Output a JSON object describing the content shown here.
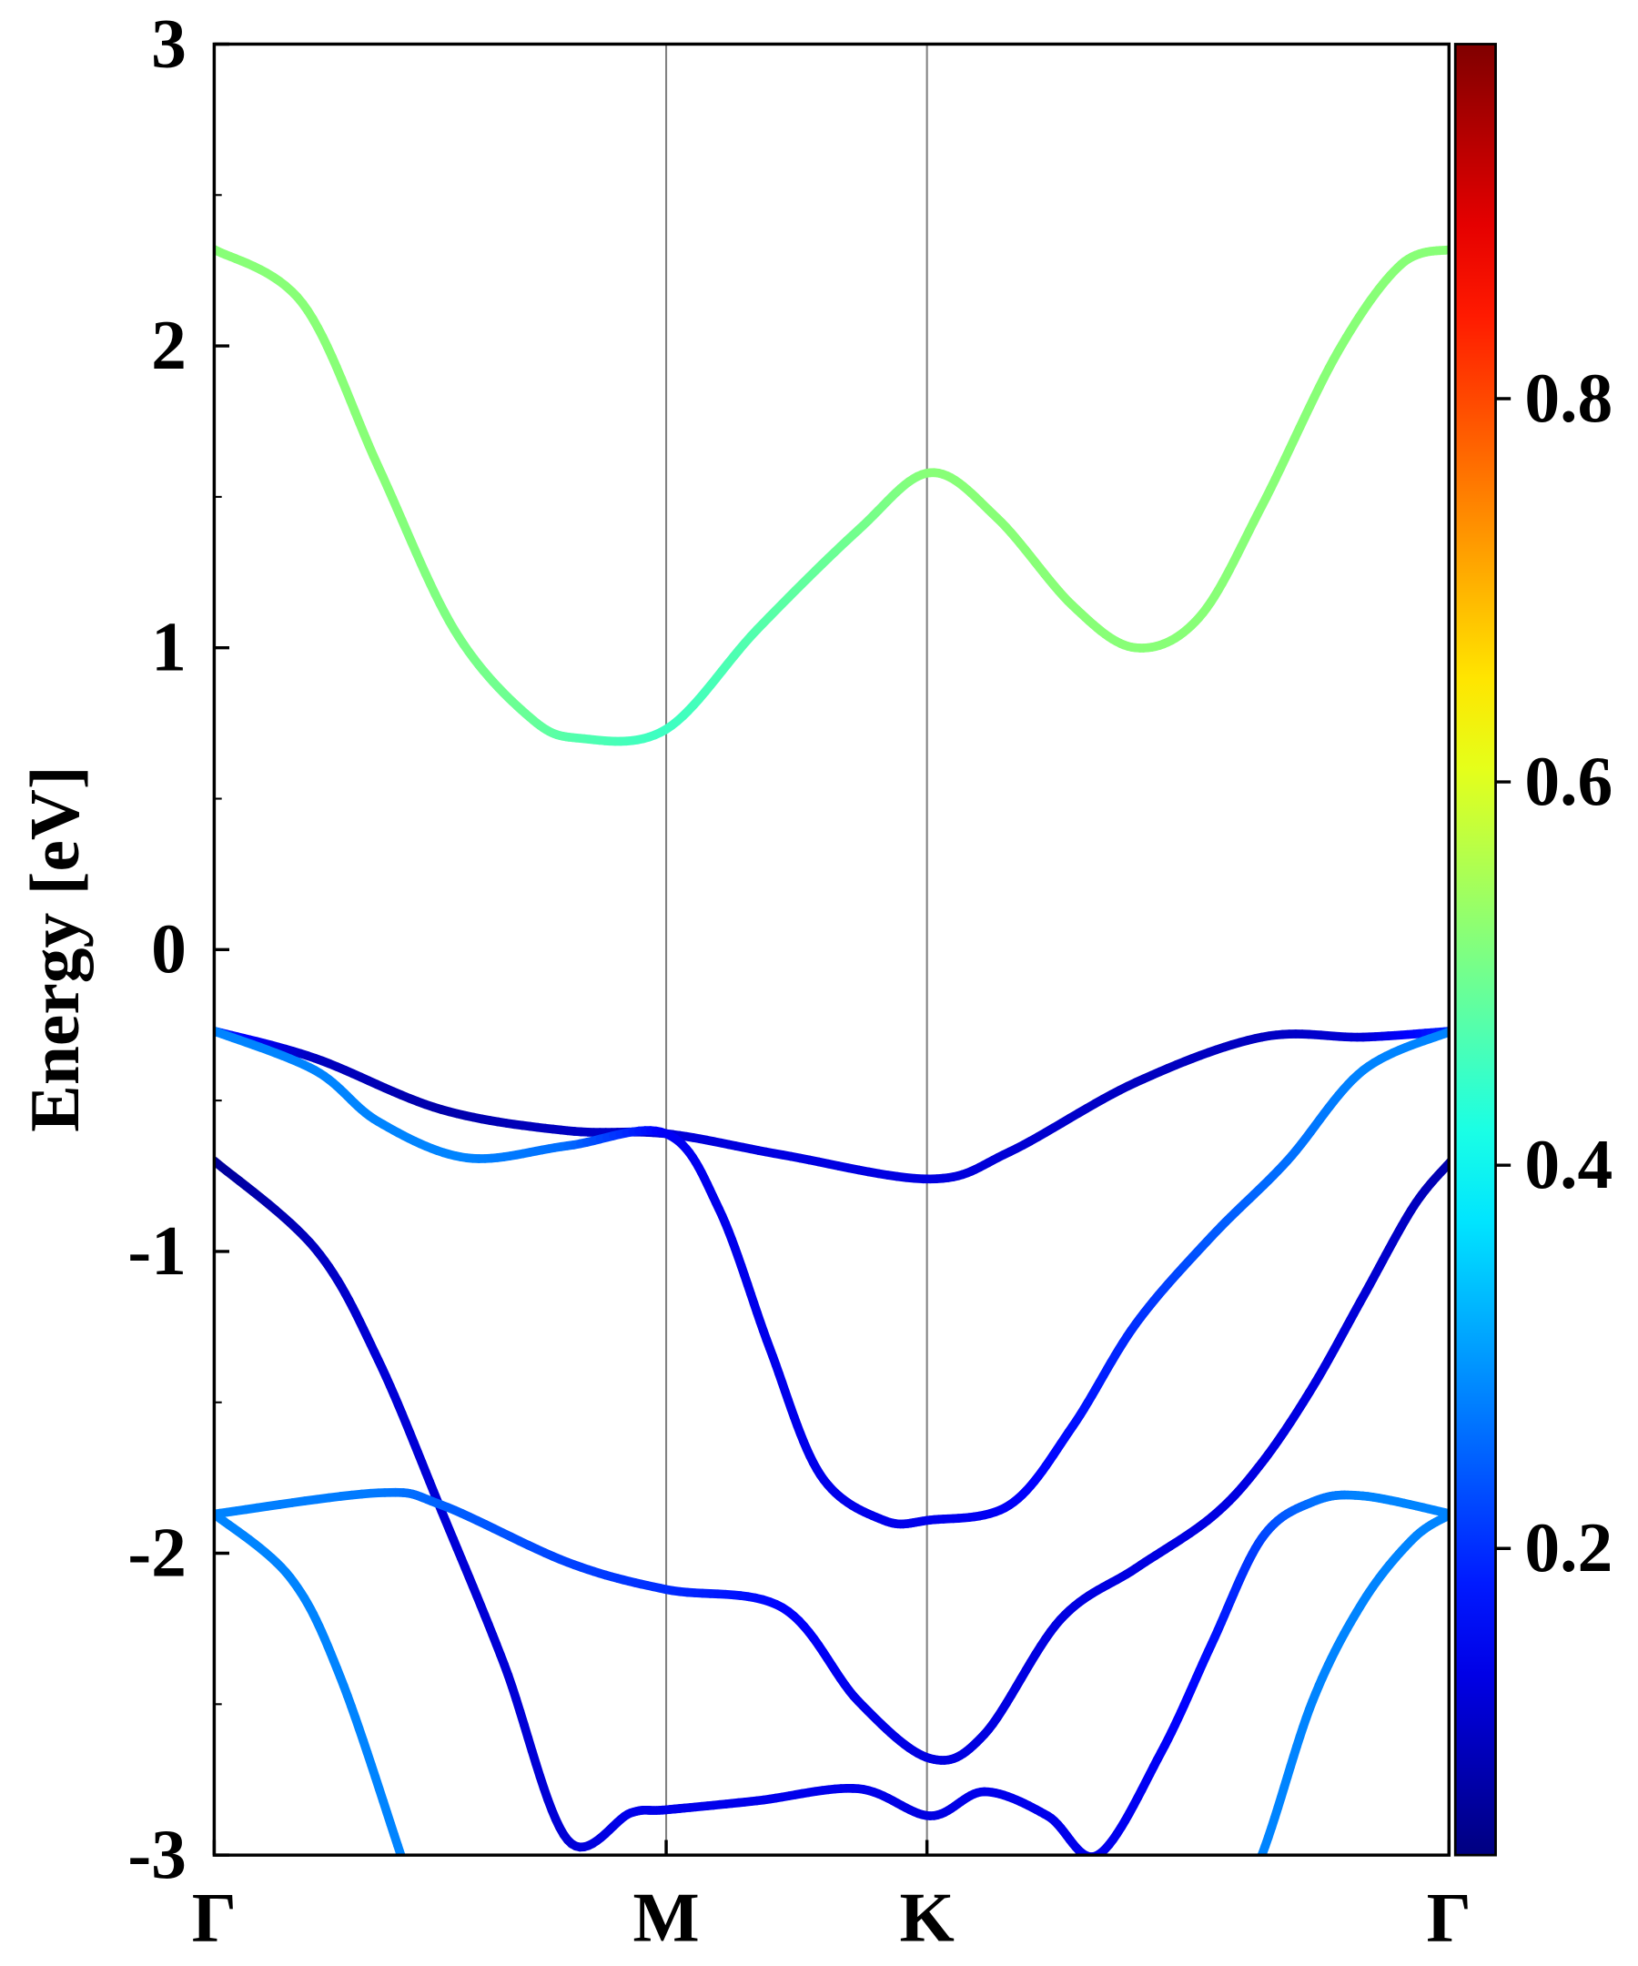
{
  "chart_data": {
    "type": "line",
    "title": "",
    "xlabel": "",
    "ylabel": "Energy [eV]",
    "ylim": [
      -3,
      3
    ],
    "yticks": [
      "3",
      "2",
      "1",
      "0",
      "-1",
      "-2",
      "-3"
    ],
    "ytick_values": [
      3,
      2,
      1,
      0,
      -1,
      -2,
      -3
    ],
    "y_minor_step": 0.5,
    "xlim": [
      0,
      2.732
    ],
    "high_symmetry_points": [
      {
        "label": "Γ",
        "k": 0
      },
      {
        "label": "M",
        "k": 1.0
      },
      {
        "label": "K",
        "k": 1.577
      },
      {
        "label": "Γ",
        "k": 2.732
      }
    ],
    "vertical_lines_at": [
      1.0,
      1.577
    ],
    "vertical_line_color": "#808080",
    "colormap": "jet",
    "colorbar": {
      "range": [
        0.04,
        0.985
      ],
      "ticks": [
        "0.2",
        "0.4",
        "0.6",
        "0.8"
      ],
      "tick_values": [
        0.2,
        0.4,
        0.6,
        0.8
      ]
    },
    "bands_note_units": "each point is [k, energy_eV, weight]",
    "bands": [
      {
        "points": [
          [
            0,
            2.32,
            0.52
          ],
          [
            0.196,
            2.14,
            0.52
          ],
          [
            0.363,
            1.6,
            0.52
          ],
          [
            0.531,
            1.06,
            0.51
          ],
          [
            0.698,
            0.77,
            0.49
          ],
          [
            0.81,
            0.7,
            0.47
          ],
          [
            1.0,
            0.73,
            0.45
          ],
          [
            1.201,
            1.06,
            0.47
          ],
          [
            1.425,
            1.39,
            0.5
          ],
          [
            1.584,
            1.58,
            0.52
          ],
          [
            1.732,
            1.43,
            0.52
          ],
          [
            1.899,
            1.14,
            0.52
          ],
          [
            2.039,
            1.0,
            0.52
          ],
          [
            2.179,
            1.1,
            0.52
          ],
          [
            2.318,
            1.47,
            0.52
          ],
          [
            2.486,
            1.98,
            0.52
          ],
          [
            2.626,
            2.27,
            0.52
          ],
          [
            2.737,
            2.32,
            0.52
          ]
        ]
      },
      {
        "points": [
          [
            0,
            -0.27,
            0.2
          ],
          [
            0.223,
            -0.36,
            0.1
          ],
          [
            0.503,
            -0.53,
            0.08
          ],
          [
            0.782,
            -0.6,
            0.1
          ],
          [
            1.0,
            -0.61,
            0.12
          ],
          [
            1.257,
            -0.68,
            0.13
          ],
          [
            1.584,
            -0.76,
            0.13
          ],
          [
            1.76,
            -0.67,
            0.12
          ],
          [
            2.039,
            -0.44,
            0.1
          ],
          [
            2.318,
            -0.29,
            0.1
          ],
          [
            2.542,
            -0.29,
            0.12
          ],
          [
            2.737,
            -0.27,
            0.2
          ]
        ]
      },
      {
        "points": [
          [
            0,
            -0.27,
            0.28
          ],
          [
            0.223,
            -0.4,
            0.28
          ],
          [
            0.363,
            -0.57,
            0.28
          ],
          [
            0.559,
            -0.69,
            0.28
          ],
          [
            0.782,
            -0.65,
            0.26
          ],
          [
            1.0,
            -0.61,
            0.15
          ],
          [
            1.117,
            -0.86,
            0.14
          ],
          [
            1.229,
            -1.32,
            0.14
          ],
          [
            1.341,
            -1.74,
            0.14
          ],
          [
            1.48,
            -1.89,
            0.14
          ],
          [
            1.584,
            -1.89,
            0.14
          ],
          [
            1.76,
            -1.84,
            0.15
          ],
          [
            1.899,
            -1.58,
            0.17
          ],
          [
            2.039,
            -1.24,
            0.2
          ],
          [
            2.207,
            -0.95,
            0.24
          ],
          [
            2.374,
            -0.7,
            0.26
          ],
          [
            2.542,
            -0.4,
            0.28
          ],
          [
            2.737,
            -0.27,
            0.28
          ]
        ]
      },
      {
        "points": [
          [
            0,
            -0.7,
            0.06
          ],
          [
            0.223,
            -0.99,
            0.1
          ],
          [
            0.363,
            -1.36,
            0.12
          ],
          [
            0.503,
            -1.86,
            0.12
          ],
          [
            0.642,
            -2.37,
            0.12
          ],
          [
            0.782,
            -2.95,
            0.12
          ],
          [
            0.922,
            -2.86,
            0.14
          ],
          [
            1.0,
            -2.85,
            0.14
          ],
          [
            1.201,
            -2.82,
            0.14
          ],
          [
            1.425,
            -2.78,
            0.14
          ],
          [
            1.584,
            -2.87,
            0.13
          ],
          [
            1.704,
            -2.79,
            0.14
          ],
          [
            1.844,
            -2.87,
            0.14
          ],
          [
            1.955,
            -3.0,
            0.14
          ],
          [
            2.095,
            -2.66,
            0.15
          ],
          [
            2.207,
            -2.3,
            0.17
          ],
          [
            2.318,
            -1.95,
            0.22
          ],
          [
            2.43,
            -1.83,
            0.26
          ],
          [
            2.542,
            -1.81,
            0.28
          ],
          [
            2.737,
            -1.87,
            0.28
          ]
        ]
      },
      {
        "points": [
          [
            0,
            -1.87,
            0.28
          ],
          [
            0.363,
            -1.8,
            0.27
          ],
          [
            0.503,
            -1.84,
            0.25
          ],
          [
            0.782,
            -2.03,
            0.22
          ],
          [
            1.0,
            -2.12,
            0.2
          ],
          [
            1.257,
            -2.18,
            0.16
          ],
          [
            1.425,
            -2.49,
            0.14
          ],
          [
            1.584,
            -2.68,
            0.13
          ],
          [
            1.704,
            -2.6,
            0.13
          ],
          [
            1.872,
            -2.22,
            0.13
          ],
          [
            2.039,
            -2.05,
            0.13
          ],
          [
            2.207,
            -1.88,
            0.13
          ],
          [
            2.318,
            -1.7,
            0.13
          ],
          [
            2.43,
            -1.45,
            0.13
          ],
          [
            2.542,
            -1.15,
            0.12
          ],
          [
            2.654,
            -0.85,
            0.1
          ],
          [
            2.737,
            -0.7,
            0.08
          ]
        ]
      },
      {
        "points": [
          [
            0,
            -1.87,
            0.28
          ],
          [
            0.168,
            -2.08,
            0.28
          ],
          [
            0.279,
            -2.41,
            0.28
          ],
          [
            0.413,
            -3.0,
            0.28
          ],
          [
            0.5,
            -3.4,
            0.28
          ]
        ]
      },
      {
        "points": [
          [
            2.2,
            -3.4,
            0.28
          ],
          [
            2.318,
            -3.0,
            0.28
          ],
          [
            2.43,
            -2.49,
            0.28
          ],
          [
            2.542,
            -2.16,
            0.28
          ],
          [
            2.654,
            -1.95,
            0.28
          ],
          [
            2.737,
            -1.87,
            0.28
          ]
        ]
      }
    ]
  }
}
